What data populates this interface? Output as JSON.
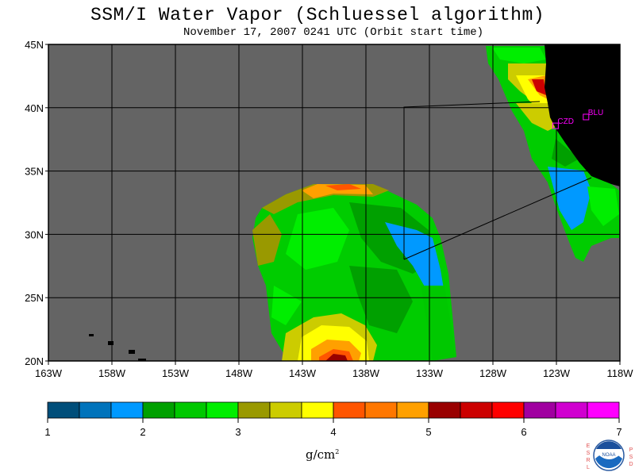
{
  "title": "SSM/I Water Vapor (Schluessel algorithm)",
  "subtitle": "November 17, 2007  0241 UTC  (Orbit start time)",
  "map": {
    "lon_range": [
      -163,
      -118
    ],
    "lat_range": [
      20,
      45
    ],
    "land_color": "#000000",
    "no_data_color": "#646464",
    "lon_ticks": [
      "163W",
      "158W",
      "153W",
      "148W",
      "143W",
      "138W",
      "133W",
      "128W",
      "123W",
      "118W"
    ],
    "lat_ticks": [
      "45N",
      "40N",
      "35N",
      "30N",
      "25N",
      "20N"
    ],
    "stations": [
      {
        "label": "CZD",
        "lon": -123.1,
        "lat": 38.6,
        "color": "#ff00ff"
      },
      {
        "label": "BLU",
        "lon": -120.7,
        "lat": 39.3,
        "color": "#ff00ff"
      }
    ]
  },
  "colorbar": {
    "tick_labels": [
      "1",
      "2",
      "3",
      "4",
      "5",
      "6",
      "7"
    ],
    "colors": [
      "#004e7a",
      "#0073bb",
      "#0099ff",
      "#00a000",
      "#00c800",
      "#00ee00",
      "#999900",
      "#cccc00",
      "#ffff00",
      "#ff5500",
      "#ff7700",
      "#ffa000",
      "#990000",
      "#cc0000",
      "#ff0000",
      "#a000a0",
      "#d000d0",
      "#ff00ff"
    ],
    "units_base": "g/cm",
    "units_exp": "2"
  },
  "logo": {
    "left_letters": [
      "E",
      "S",
      "R",
      "L"
    ],
    "right_letters": [
      "P",
      "S",
      "D"
    ],
    "name": "NOAA"
  }
}
